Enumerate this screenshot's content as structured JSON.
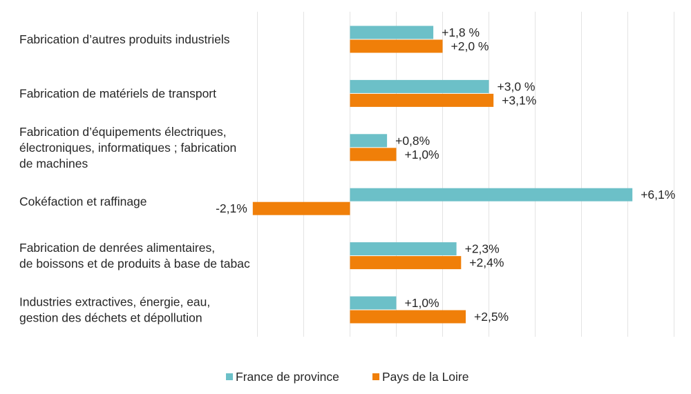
{
  "chart_data": {
    "type": "bar",
    "orientation": "horizontal",
    "categories": [
      [
        "Fabrication d’autres produits industriels"
      ],
      [
        "Fabrication de matériels de transport"
      ],
      [
        "Fabrication d’équipements électriques,",
        "électroniques, informatiques ; fabrication",
        "de machines"
      ],
      [
        "Cokéfaction et raffinage"
      ],
      [
        "Fabrication de denrées alimentaires,",
        "de boissons et de produits à base de tabac"
      ],
      [
        "Industries extractives, énergie, eau,",
        "gestion des déchets et dépollution"
      ]
    ],
    "series": [
      {
        "name": "France de province",
        "color": "#6CC0C8",
        "values": [
          1.8,
          3.0,
          0.8,
          6.1,
          2.3,
          1.0
        ],
        "labels": [
          "+1,8 %",
          "+3,0 %",
          "+0,8%",
          "+6,1%",
          "+2,3%",
          "+1,0%"
        ]
      },
      {
        "name": "Pays de la Loire",
        "color": "#F07F09",
        "values": [
          2.0,
          3.1,
          1.0,
          -2.1,
          2.4,
          2.5
        ],
        "labels": [
          "+2,0 %",
          "+3,1%",
          "+1,0%",
          "-2,1%",
          "+2,4%",
          "+2,5%"
        ]
      }
    ],
    "xlim": [
      -2,
      7
    ],
    "grid": "vertical",
    "legend_position": "bottom"
  }
}
